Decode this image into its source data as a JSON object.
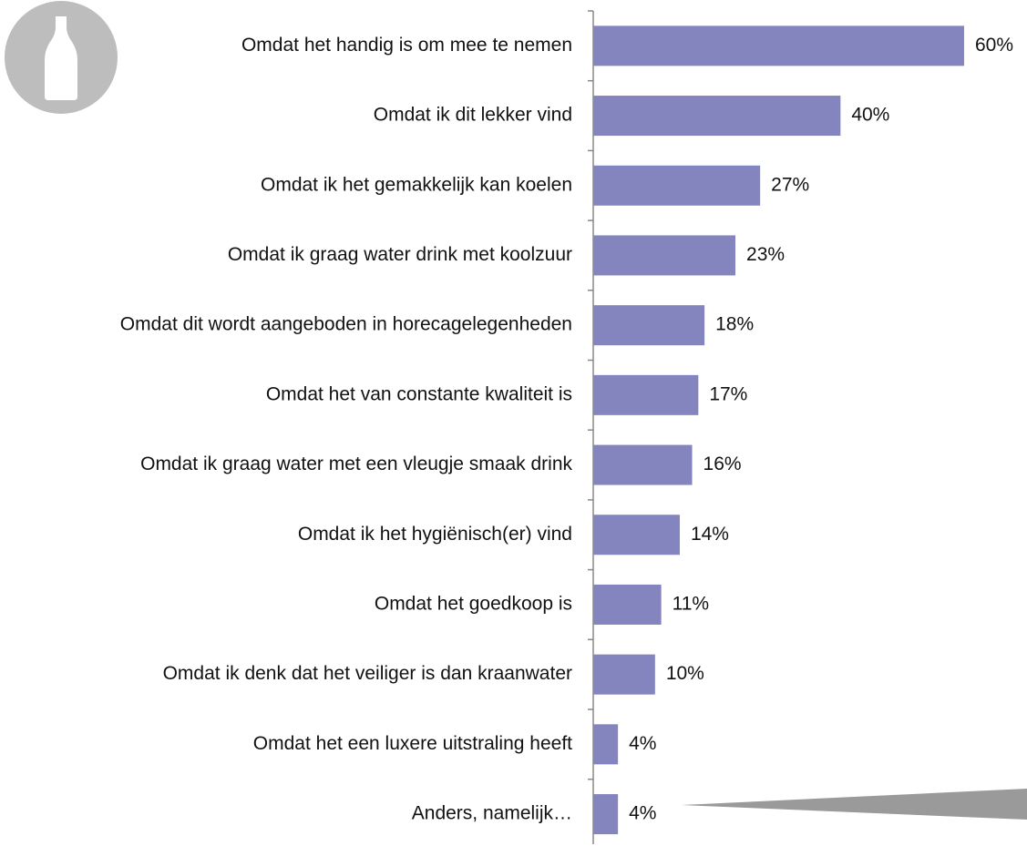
{
  "chart_data": {
    "type": "hbar",
    "categories": [
      "Omdat het handig is om mee te nemen",
      "Omdat ik dit lekker vind",
      "Omdat ik het gemakkelijk kan koelen",
      "Omdat ik graag water drink met koolzuur",
      "Omdat dit wordt aangeboden in horecagelegenheden",
      "Omdat het van constante kwaliteit is",
      "Omdat ik graag water met een vleugje smaak drink",
      "Omdat ik het hygiënisch(er) vind",
      "Omdat het goedkoop is",
      "Omdat ik denk dat het veiliger is dan kraanwater",
      "Omdat het een luxere uitstraling heeft",
      "Anders, namelijk…"
    ],
    "values": [
      60,
      40,
      27,
      23,
      18,
      17,
      16,
      14,
      11,
      10,
      4,
      4
    ],
    "value_labels": [
      "60%",
      "40%",
      "27%",
      "23%",
      "18%",
      "17%",
      "16%",
      "14%",
      "11%",
      "10%",
      "4%",
      "4%"
    ],
    "color": "#8484bf"
  }
}
